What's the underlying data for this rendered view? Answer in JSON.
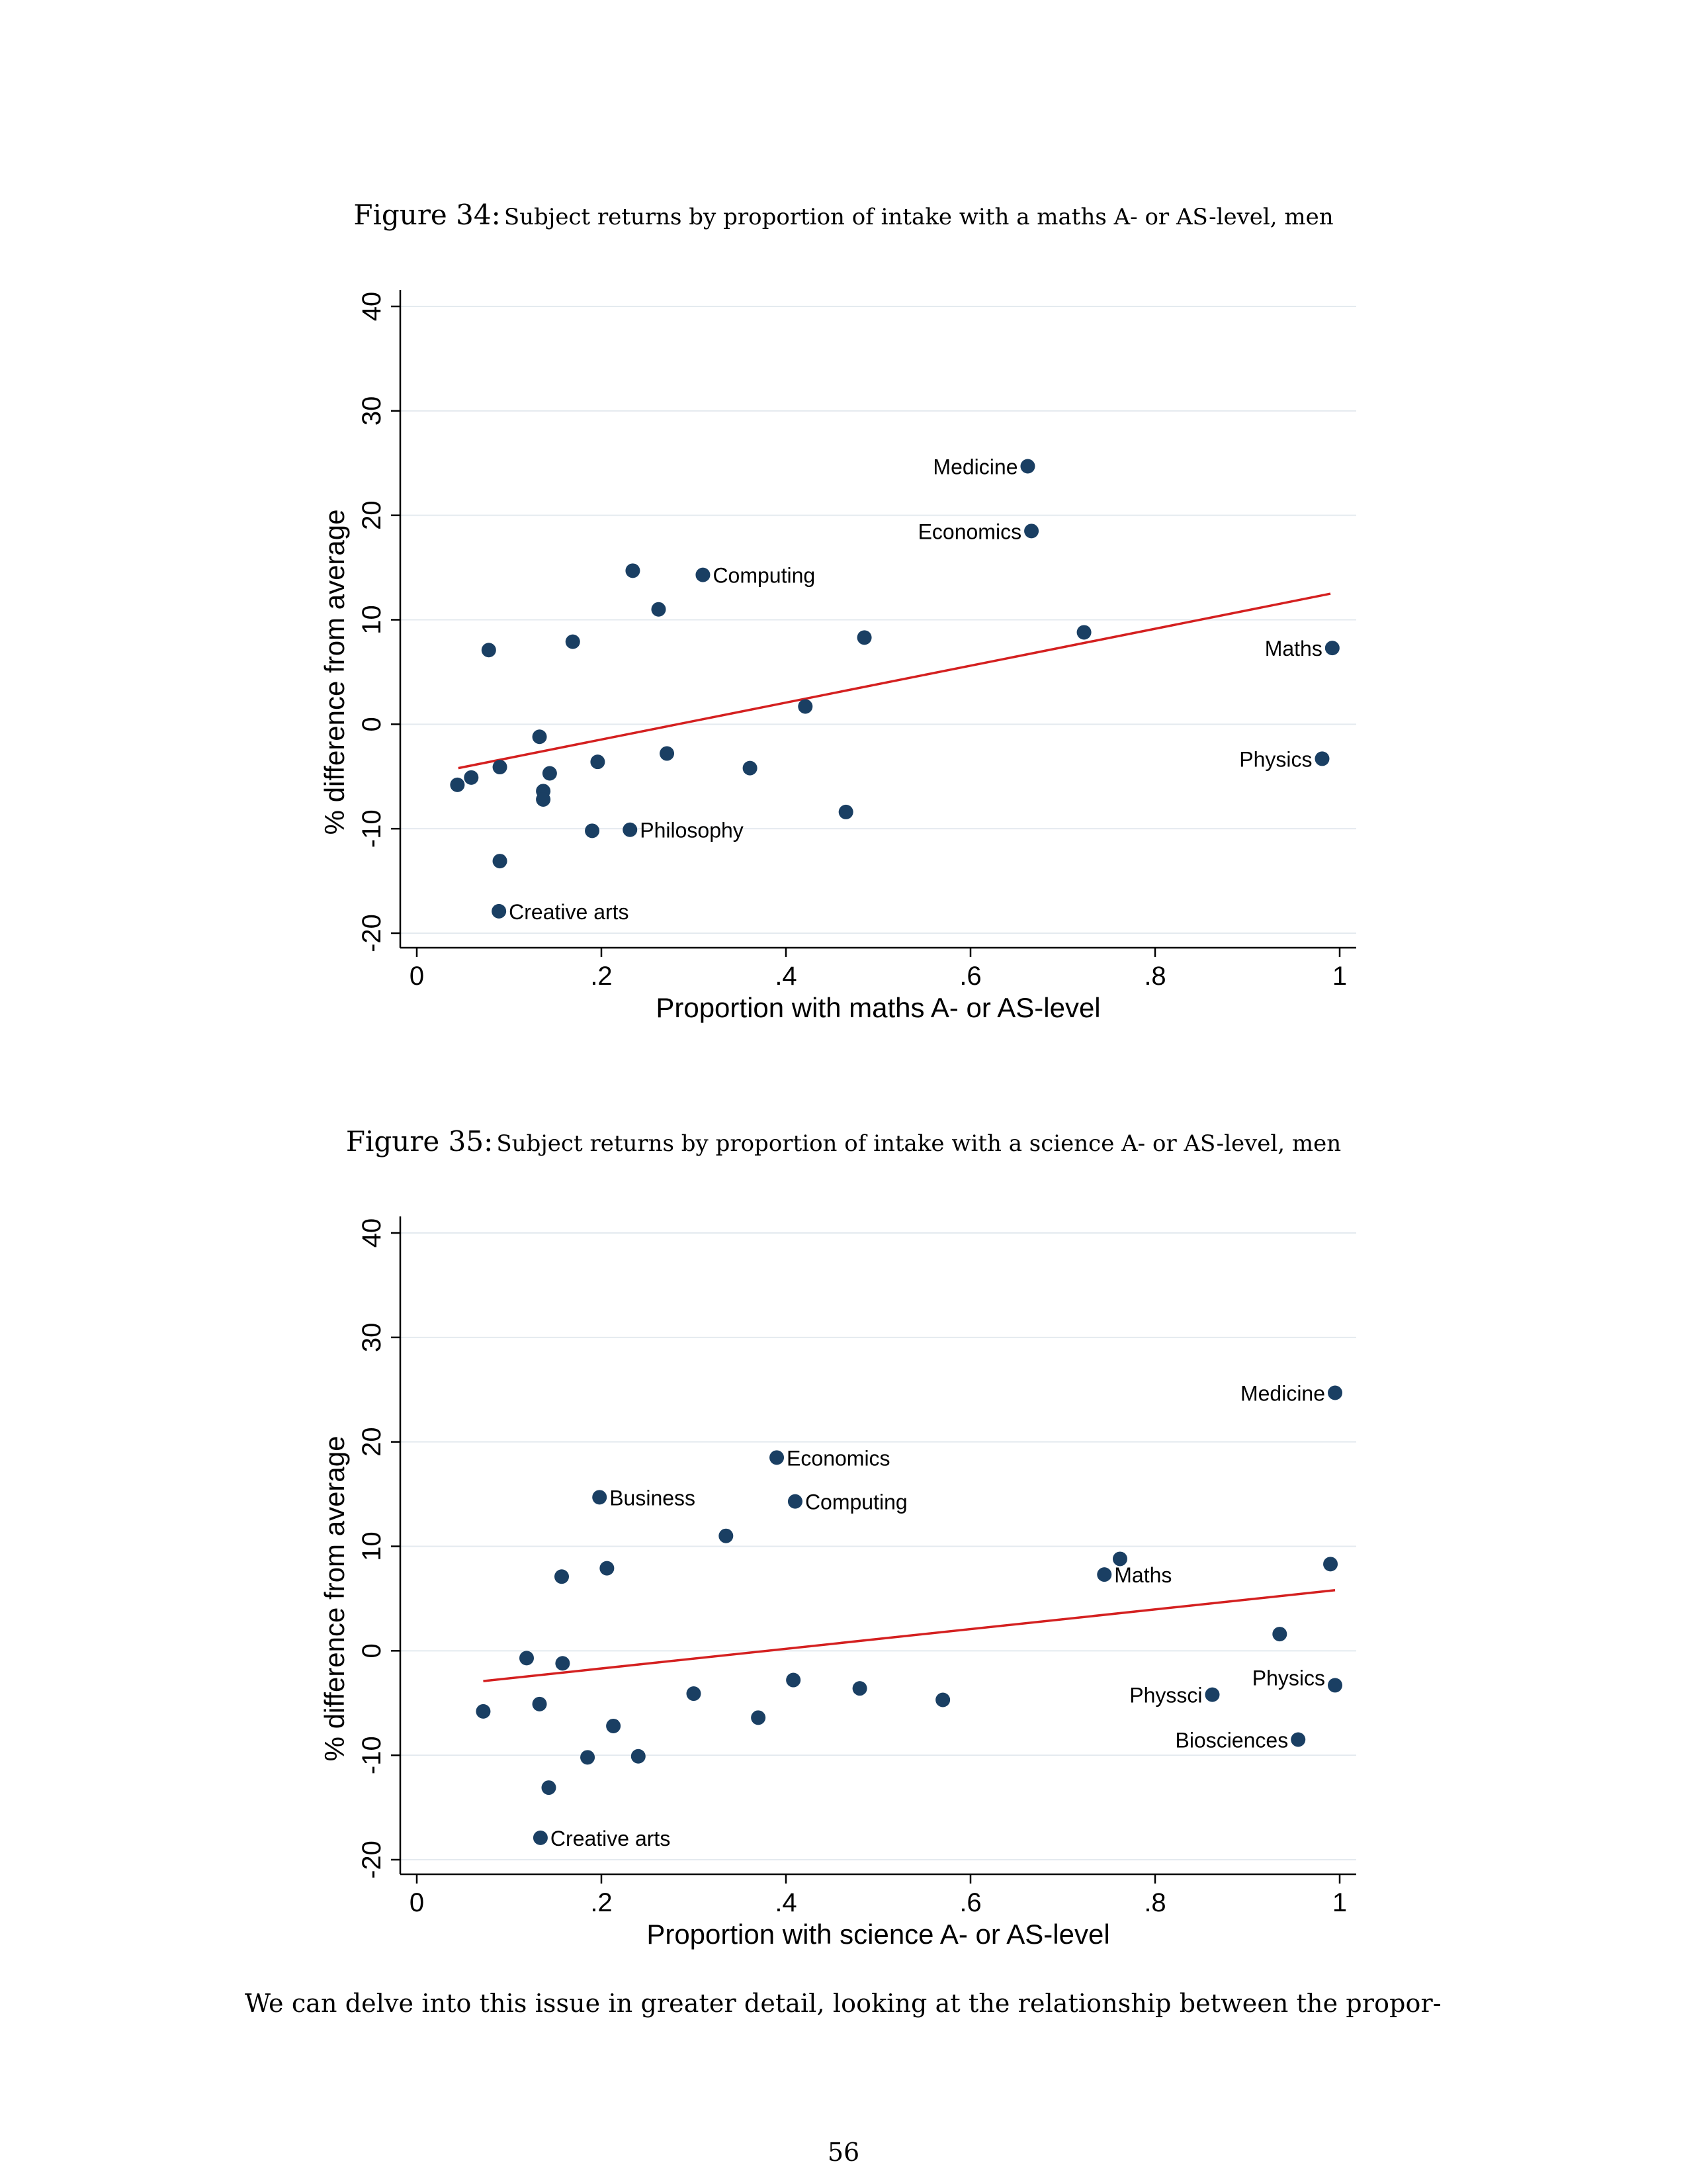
{
  "figures": [
    {
      "number_label": "Figure 34:",
      "caption": "Subject returns by proportion of intake with a maths A- or AS-level, men"
    },
    {
      "number_label": "Figure 35:",
      "caption": "Subject returns by proportion of intake with a science A- or AS-level, men"
    }
  ],
  "body_text": "We can delve into this issue in greater detail, looking at the relationship between the propor-",
  "page_number": "56",
  "colors": {
    "marker": "#1a3f63",
    "fit_line": "#d42020",
    "grid": "#e4eaef"
  },
  "chart_data": [
    {
      "type": "scatter",
      "title": "Figure 34: Subject returns by proportion of intake with a maths A- or AS-level, men",
      "xlabel": "Proportion with maths A- or AS-level",
      "ylabel": "% difference from average",
      "xlim": [
        0,
        1
      ],
      "ylim": [
        -20,
        40
      ],
      "xticks": [
        0,
        0.2,
        0.4,
        0.6,
        0.8,
        1
      ],
      "xtick_labels": [
        "0",
        ".2",
        ".4",
        ".6",
        ".8",
        "1"
      ],
      "yticks": [
        -20,
        -10,
        0,
        10,
        20,
        30,
        40
      ],
      "ytick_labels": [
        "-20",
        "-10",
        "0",
        "10",
        "20",
        "30",
        "40"
      ],
      "grid": true,
      "fit_line": {
        "x": [
          0.045,
          0.99
        ],
        "y": [
          -4.2,
          12.5
        ]
      },
      "points": [
        {
          "x": 0.662,
          "y": 24.7,
          "label": "Medicine",
          "label_side": "left"
        },
        {
          "x": 0.666,
          "y": 18.5,
          "label": "Economics",
          "label_side": "left"
        },
        {
          "x": 0.31,
          "y": 14.3,
          "label": "Computing",
          "label_side": "right"
        },
        {
          "x": 0.992,
          "y": 7.3,
          "label": "Maths",
          "label_side": "left"
        },
        {
          "x": 0.981,
          "y": -3.3,
          "label": "Physics",
          "label_side": "left"
        },
        {
          "x": 0.231,
          "y": -10.1,
          "label": "Philosophy",
          "label_side": "right"
        },
        {
          "x": 0.089,
          "y": -17.9,
          "label": "Creative arts",
          "label_side": "right"
        },
        {
          "x": 0.234,
          "y": 14.7,
          "label": ""
        },
        {
          "x": 0.262,
          "y": 11.0,
          "label": ""
        },
        {
          "x": 0.078,
          "y": 7.1,
          "label": ""
        },
        {
          "x": 0.169,
          "y": 7.9,
          "label": ""
        },
        {
          "x": 0.485,
          "y": 8.3,
          "label": ""
        },
        {
          "x": 0.723,
          "y": 8.8,
          "label": ""
        },
        {
          "x": 0.421,
          "y": 1.7,
          "label": ""
        },
        {
          "x": 0.133,
          "y": -1.2,
          "label": ""
        },
        {
          "x": 0.271,
          "y": -2.8,
          "label": ""
        },
        {
          "x": 0.196,
          "y": -3.6,
          "label": ""
        },
        {
          "x": 0.09,
          "y": -4.1,
          "label": ""
        },
        {
          "x": 0.144,
          "y": -4.7,
          "label": ""
        },
        {
          "x": 0.361,
          "y": -4.2,
          "label": ""
        },
        {
          "x": 0.059,
          "y": -5.1,
          "label": ""
        },
        {
          "x": 0.044,
          "y": -5.8,
          "label": ""
        },
        {
          "x": 0.137,
          "y": -6.4,
          "label": ""
        },
        {
          "x": 0.137,
          "y": -7.2,
          "label": ""
        },
        {
          "x": 0.465,
          "y": -8.4,
          "label": ""
        },
        {
          "x": 0.19,
          "y": -10.2,
          "label": ""
        },
        {
          "x": 0.09,
          "y": -13.1,
          "label": ""
        }
      ]
    },
    {
      "type": "scatter",
      "title": "Figure 35: Subject returns by proportion of intake with a science A- or AS-level, men",
      "xlabel": "Proportion with science A- or AS-level",
      "ylabel": "% difference from average",
      "xlim": [
        0,
        1
      ],
      "ylim": [
        -20,
        40
      ],
      "xticks": [
        0,
        0.2,
        0.4,
        0.6,
        0.8,
        1
      ],
      "xtick_labels": [
        "0",
        ".2",
        ".4",
        ".6",
        ".8",
        "1"
      ],
      "yticks": [
        -20,
        -10,
        0,
        10,
        20,
        30,
        40
      ],
      "ytick_labels": [
        "-20",
        "-10",
        "0",
        "10",
        "20",
        "30",
        "40"
      ],
      "grid": true,
      "fit_line": {
        "x": [
          0.072,
          0.995
        ],
        "y": [
          -2.9,
          5.8
        ]
      },
      "points": [
        {
          "x": 0.995,
          "y": 24.7,
          "label": "Medicine",
          "label_side": "left"
        },
        {
          "x": 0.39,
          "y": 18.5,
          "label": "Economics",
          "label_side": "right"
        },
        {
          "x": 0.198,
          "y": 14.7,
          "label": "Business",
          "label_side": "right"
        },
        {
          "x": 0.41,
          "y": 14.3,
          "label": "Computing",
          "label_side": "right"
        },
        {
          "x": 0.745,
          "y": 7.3,
          "label": "Maths",
          "label_side": "right"
        },
        {
          "x": 0.862,
          "y": -4.2,
          "label": "Physsci",
          "label_side": "left"
        },
        {
          "x": 0.995,
          "y": -3.3,
          "label": "Physics",
          "label_side": "left-up"
        },
        {
          "x": 0.955,
          "y": -8.5,
          "label": "Biosciences",
          "label_side": "left"
        },
        {
          "x": 0.134,
          "y": -17.9,
          "label": "Creative arts",
          "label_side": "right"
        },
        {
          "x": 0.335,
          "y": 11.0,
          "label": ""
        },
        {
          "x": 0.157,
          "y": 7.1,
          "label": ""
        },
        {
          "x": 0.206,
          "y": 7.9,
          "label": ""
        },
        {
          "x": 0.762,
          "y": 8.8,
          "label": ""
        },
        {
          "x": 0.99,
          "y": 8.3,
          "label": ""
        },
        {
          "x": 0.935,
          "y": 1.6,
          "label": ""
        },
        {
          "x": 0.119,
          "y": -0.7,
          "label": ""
        },
        {
          "x": 0.158,
          "y": -1.2,
          "label": ""
        },
        {
          "x": 0.3,
          "y": -4.1,
          "label": ""
        },
        {
          "x": 0.408,
          "y": -2.8,
          "label": ""
        },
        {
          "x": 0.48,
          "y": -3.6,
          "label": ""
        },
        {
          "x": 0.57,
          "y": -4.7,
          "label": ""
        },
        {
          "x": 0.133,
          "y": -5.1,
          "label": ""
        },
        {
          "x": 0.072,
          "y": -5.8,
          "label": ""
        },
        {
          "x": 0.37,
          "y": -6.4,
          "label": ""
        },
        {
          "x": 0.213,
          "y": -7.2,
          "label": ""
        },
        {
          "x": 0.185,
          "y": -10.2,
          "label": ""
        },
        {
          "x": 0.24,
          "y": -10.1,
          "label": ""
        },
        {
          "x": 0.143,
          "y": -13.1,
          "label": ""
        }
      ]
    }
  ]
}
